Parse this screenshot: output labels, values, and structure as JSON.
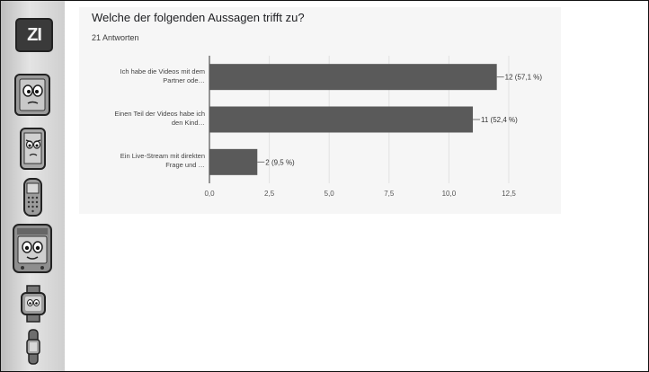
{
  "logo_text": "ZI",
  "sidebar": {
    "icons": [
      "tablet-face-icon",
      "phone-face-icon",
      "keypad-phone-icon",
      "handheld-console-icon",
      "smartwatch-icon",
      "fitness-band-icon"
    ]
  },
  "question": {
    "title": "Welche der folgenden Aussagen trifft zu?",
    "responses": "21 Antworten"
  },
  "chart_data": {
    "type": "bar",
    "orientation": "horizontal",
    "categories": [
      [
        "Ich habe die Videos mit dem",
        "Partner ode…"
      ],
      [
        "Einen Teil der Videos habe ich",
        "den Kind…"
      ],
      [
        "Ein Live-Stream mit direkten",
        "Frage und …"
      ]
    ],
    "values": [
      12,
      11,
      2
    ],
    "value_labels": [
      "12 (57,1 %)",
      "11 (52,4 %)",
      "2 (9,5 %)"
    ],
    "x_ticks": [
      "0,0",
      "2,5",
      "5,0",
      "7,5",
      "10,0",
      "12,5"
    ],
    "xlim": [
      0,
      12.5
    ],
    "bar_color": "#5a5a5a",
    "grid": true
  }
}
